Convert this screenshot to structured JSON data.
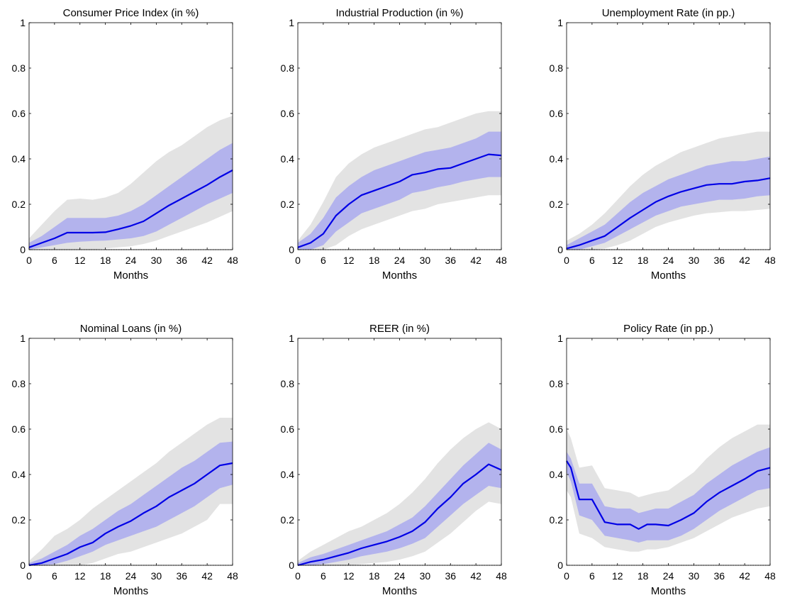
{
  "colors": {
    "outer_band": "#e3e3e3",
    "inner_band": "#b3b3ed",
    "line": "#0000e6",
    "axis": "#000000"
  },
  "chart_data": [
    {
      "type": "line",
      "title": "Consumer Price Index (in %)",
      "xlabel": "Months",
      "ylabel": "",
      "xlim": [
        0,
        48
      ],
      "ylim": [
        0,
        1
      ],
      "xticks": [
        "0",
        "6",
        "12",
        "18",
        "24",
        "30",
        "36",
        "42",
        "48"
      ],
      "yticks": [
        "0",
        "0.2",
        "0.4",
        "0.6",
        "0.8",
        "1"
      ],
      "x": [
        0,
        3,
        6,
        9,
        12,
        15,
        18,
        21,
        24,
        27,
        30,
        33,
        36,
        39,
        42,
        45,
        48
      ],
      "series": [
        {
          "role": "median",
          "values": [
            0.01,
            0.03,
            0.05,
            0.075,
            0.075,
            0.075,
            0.077,
            0.09,
            0.105,
            0.125,
            0.16,
            0.195,
            0.225,
            0.255,
            0.285,
            0.32,
            0.35
          ]
        },
        {
          "role": "inner_lower",
          "values": [
            0.0,
            0.01,
            0.02,
            0.03,
            0.035,
            0.038,
            0.04,
            0.045,
            0.05,
            0.06,
            0.08,
            0.11,
            0.14,
            0.17,
            0.2,
            0.225,
            0.25
          ]
        },
        {
          "role": "inner_upper",
          "values": [
            0.03,
            0.06,
            0.1,
            0.14,
            0.14,
            0.14,
            0.14,
            0.15,
            0.17,
            0.2,
            0.24,
            0.28,
            0.32,
            0.36,
            0.4,
            0.44,
            0.47
          ]
        },
        {
          "role": "outer_lower",
          "values": [
            0.0,
            0.0,
            0.0,
            0.0,
            0.0,
            0.0,
            0.005,
            0.01,
            0.015,
            0.025,
            0.04,
            0.06,
            0.08,
            0.1,
            0.12,
            0.145,
            0.17
          ]
        },
        {
          "role": "outer_upper",
          "values": [
            0.05,
            0.11,
            0.17,
            0.22,
            0.225,
            0.22,
            0.23,
            0.25,
            0.29,
            0.34,
            0.39,
            0.43,
            0.46,
            0.5,
            0.54,
            0.57,
            0.59
          ]
        }
      ]
    },
    {
      "type": "line",
      "title": "Industrial Production (in %)",
      "xlabel": "Months",
      "ylabel": "",
      "xlim": [
        0,
        48
      ],
      "ylim": [
        0,
        1
      ],
      "xticks": [
        "0",
        "6",
        "12",
        "18",
        "24",
        "30",
        "36",
        "42",
        "48"
      ],
      "yticks": [
        "0",
        "0.2",
        "0.4",
        "0.6",
        "0.8",
        "1"
      ],
      "x": [
        0,
        3,
        6,
        9,
        12,
        15,
        18,
        21,
        24,
        27,
        30,
        33,
        36,
        39,
        42,
        45,
        48
      ],
      "series": [
        {
          "role": "median",
          "values": [
            0.01,
            0.03,
            0.07,
            0.15,
            0.2,
            0.24,
            0.26,
            0.28,
            0.3,
            0.33,
            0.34,
            0.355,
            0.36,
            0.38,
            0.4,
            0.42,
            0.415
          ]
        },
        {
          "role": "inner_lower",
          "values": [
            0.0,
            0.0,
            0.02,
            0.08,
            0.12,
            0.16,
            0.18,
            0.2,
            0.22,
            0.25,
            0.26,
            0.275,
            0.285,
            0.3,
            0.31,
            0.32,
            0.32
          ]
        },
        {
          "role": "inner_upper",
          "values": [
            0.03,
            0.07,
            0.14,
            0.23,
            0.28,
            0.32,
            0.35,
            0.37,
            0.39,
            0.41,
            0.43,
            0.44,
            0.45,
            0.47,
            0.49,
            0.52,
            0.52
          ]
        },
        {
          "role": "outer_lower",
          "values": [
            0.0,
            0.0,
            0.0,
            0.02,
            0.06,
            0.09,
            0.11,
            0.13,
            0.15,
            0.17,
            0.18,
            0.2,
            0.21,
            0.22,
            0.23,
            0.24,
            0.24
          ]
        },
        {
          "role": "outer_upper",
          "values": [
            0.04,
            0.11,
            0.21,
            0.32,
            0.38,
            0.42,
            0.45,
            0.47,
            0.49,
            0.51,
            0.53,
            0.54,
            0.56,
            0.58,
            0.6,
            0.61,
            0.61
          ]
        }
      ]
    },
    {
      "type": "line",
      "title": "Unemployment Rate (in pp.)",
      "xlabel": "Months",
      "ylabel": "",
      "xlim": [
        0,
        48
      ],
      "ylim": [
        0,
        1
      ],
      "xticks": [
        "0",
        "6",
        "12",
        "18",
        "24",
        "30",
        "36",
        "42",
        "48"
      ],
      "yticks": [
        "0",
        "0.2",
        "0.4",
        "0.6",
        "0.8",
        "1"
      ],
      "x": [
        0,
        3,
        6,
        9,
        12,
        15,
        18,
        21,
        24,
        27,
        30,
        33,
        36,
        39,
        42,
        45,
        48
      ],
      "series": [
        {
          "role": "median",
          "values": [
            0.005,
            0.02,
            0.04,
            0.06,
            0.1,
            0.14,
            0.175,
            0.21,
            0.235,
            0.255,
            0.27,
            0.285,
            0.29,
            0.29,
            0.3,
            0.305,
            0.315
          ]
        },
        {
          "role": "inner_lower",
          "values": [
            0.0,
            0.0,
            0.015,
            0.03,
            0.06,
            0.09,
            0.12,
            0.15,
            0.17,
            0.19,
            0.2,
            0.21,
            0.22,
            0.22,
            0.225,
            0.235,
            0.24
          ]
        },
        {
          "role": "inner_upper",
          "values": [
            0.02,
            0.05,
            0.08,
            0.11,
            0.16,
            0.21,
            0.25,
            0.28,
            0.31,
            0.33,
            0.35,
            0.37,
            0.38,
            0.39,
            0.39,
            0.4,
            0.41
          ]
        },
        {
          "role": "outer_lower",
          "values": [
            0.0,
            0.0,
            0.0,
            0.005,
            0.02,
            0.04,
            0.07,
            0.1,
            0.12,
            0.135,
            0.15,
            0.16,
            0.165,
            0.17,
            0.17,
            0.175,
            0.18
          ]
        },
        {
          "role": "outer_upper",
          "values": [
            0.04,
            0.07,
            0.11,
            0.16,
            0.22,
            0.28,
            0.33,
            0.37,
            0.4,
            0.43,
            0.45,
            0.47,
            0.49,
            0.5,
            0.51,
            0.52,
            0.52
          ]
        }
      ]
    },
    {
      "type": "line",
      "title": "Nominal Loans (in %)",
      "xlabel": "Months",
      "ylabel": "",
      "xlim": [
        0,
        48
      ],
      "ylim": [
        0,
        1
      ],
      "xticks": [
        "0",
        "6",
        "12",
        "18",
        "24",
        "30",
        "36",
        "42",
        "48"
      ],
      "yticks": [
        "0",
        "0.2",
        "0.4",
        "0.6",
        "0.8",
        "1"
      ],
      "x": [
        0,
        3,
        6,
        9,
        12,
        15,
        18,
        21,
        24,
        27,
        30,
        33,
        36,
        39,
        42,
        45,
        48
      ],
      "series": [
        {
          "role": "median",
          "values": [
            0.0,
            0.01,
            0.03,
            0.05,
            0.08,
            0.1,
            0.14,
            0.17,
            0.195,
            0.23,
            0.26,
            0.3,
            0.33,
            0.36,
            0.4,
            0.44,
            0.45
          ]
        },
        {
          "role": "inner_lower",
          "values": [
            0.0,
            0.0,
            0.005,
            0.02,
            0.04,
            0.06,
            0.09,
            0.11,
            0.13,
            0.15,
            0.17,
            0.2,
            0.23,
            0.26,
            0.3,
            0.34,
            0.355
          ]
        },
        {
          "role": "inner_upper",
          "values": [
            0.01,
            0.03,
            0.06,
            0.09,
            0.13,
            0.16,
            0.2,
            0.24,
            0.27,
            0.31,
            0.35,
            0.39,
            0.43,
            0.46,
            0.5,
            0.54,
            0.545
          ]
        },
        {
          "role": "outer_lower",
          "values": [
            0.0,
            0.0,
            0.0,
            0.0,
            0.0,
            0.01,
            0.03,
            0.05,
            0.06,
            0.08,
            0.1,
            0.12,
            0.14,
            0.17,
            0.2,
            0.27,
            0.27
          ]
        },
        {
          "role": "outer_upper",
          "values": [
            0.02,
            0.07,
            0.13,
            0.16,
            0.2,
            0.25,
            0.29,
            0.33,
            0.37,
            0.41,
            0.45,
            0.5,
            0.54,
            0.58,
            0.62,
            0.65,
            0.65
          ]
        }
      ]
    },
    {
      "type": "line",
      "title": "REER (in %)",
      "xlabel": "Months",
      "ylabel": "",
      "xlim": [
        0,
        48
      ],
      "ylim": [
        0,
        1
      ],
      "xticks": [
        "0",
        "6",
        "12",
        "18",
        "24",
        "30",
        "36",
        "42",
        "48"
      ],
      "yticks": [
        "0",
        "0.2",
        "0.4",
        "0.6",
        "0.8",
        "1"
      ],
      "x": [
        0,
        3,
        6,
        9,
        12,
        15,
        18,
        21,
        24,
        27,
        30,
        33,
        36,
        39,
        42,
        45,
        48
      ],
      "series": [
        {
          "role": "median",
          "values": [
            0.0,
            0.015,
            0.025,
            0.04,
            0.055,
            0.075,
            0.09,
            0.105,
            0.125,
            0.15,
            0.19,
            0.25,
            0.3,
            0.36,
            0.4,
            0.445,
            0.42
          ]
        },
        {
          "role": "inner_lower",
          "values": [
            0.0,
            0.0,
            0.005,
            0.015,
            0.025,
            0.04,
            0.05,
            0.06,
            0.075,
            0.095,
            0.12,
            0.17,
            0.22,
            0.27,
            0.31,
            0.35,
            0.34
          ]
        },
        {
          "role": "inner_upper",
          "values": [
            0.01,
            0.035,
            0.05,
            0.07,
            0.09,
            0.11,
            0.13,
            0.15,
            0.18,
            0.21,
            0.26,
            0.32,
            0.38,
            0.44,
            0.49,
            0.54,
            0.51
          ]
        },
        {
          "role": "outer_lower",
          "values": [
            0.0,
            0.0,
            0.0,
            0.0,
            0.0,
            0.005,
            0.01,
            0.015,
            0.025,
            0.04,
            0.06,
            0.1,
            0.14,
            0.19,
            0.24,
            0.28,
            0.27
          ]
        },
        {
          "role": "outer_upper",
          "values": [
            0.02,
            0.06,
            0.09,
            0.12,
            0.15,
            0.17,
            0.2,
            0.23,
            0.27,
            0.32,
            0.38,
            0.45,
            0.51,
            0.56,
            0.6,
            0.63,
            0.6
          ]
        }
      ]
    },
    {
      "type": "line",
      "title": "Policy Rate (in pp.)",
      "xlabel": "Months",
      "ylabel": "",
      "xlim": [
        0,
        48
      ],
      "ylim": [
        0,
        1
      ],
      "xticks": [
        "0",
        "6",
        "12",
        "18",
        "24",
        "30",
        "36",
        "42",
        "48"
      ],
      "yticks": [
        "0",
        "0.2",
        "0.4",
        "0.6",
        "0.8",
        "1"
      ],
      "x": [
        0,
        1,
        3,
        6,
        9,
        12,
        15,
        17,
        19,
        21,
        24,
        27,
        30,
        33,
        36,
        39,
        42,
        45,
        48
      ],
      "series": [
        {
          "role": "median",
          "values": [
            0.46,
            0.43,
            0.29,
            0.29,
            0.19,
            0.18,
            0.18,
            0.16,
            0.18,
            0.18,
            0.175,
            0.2,
            0.23,
            0.28,
            0.32,
            0.35,
            0.38,
            0.415,
            0.43
          ]
        },
        {
          "role": "inner_lower",
          "values": [
            0.41,
            0.37,
            0.22,
            0.2,
            0.13,
            0.12,
            0.11,
            0.1,
            0.11,
            0.11,
            0.11,
            0.13,
            0.16,
            0.2,
            0.24,
            0.27,
            0.3,
            0.33,
            0.34
          ]
        },
        {
          "role": "inner_upper",
          "values": [
            0.5,
            0.47,
            0.36,
            0.36,
            0.26,
            0.25,
            0.25,
            0.23,
            0.24,
            0.25,
            0.25,
            0.28,
            0.31,
            0.36,
            0.4,
            0.44,
            0.47,
            0.5,
            0.52
          ]
        },
        {
          "role": "outer_lower",
          "values": [
            0.33,
            0.3,
            0.14,
            0.12,
            0.08,
            0.07,
            0.06,
            0.06,
            0.07,
            0.07,
            0.08,
            0.1,
            0.12,
            0.15,
            0.18,
            0.21,
            0.23,
            0.25,
            0.26
          ]
        },
        {
          "role": "outer_upper",
          "values": [
            0.6,
            0.56,
            0.43,
            0.44,
            0.34,
            0.33,
            0.32,
            0.3,
            0.31,
            0.32,
            0.33,
            0.37,
            0.41,
            0.47,
            0.52,
            0.56,
            0.59,
            0.62,
            0.62
          ]
        }
      ]
    }
  ]
}
